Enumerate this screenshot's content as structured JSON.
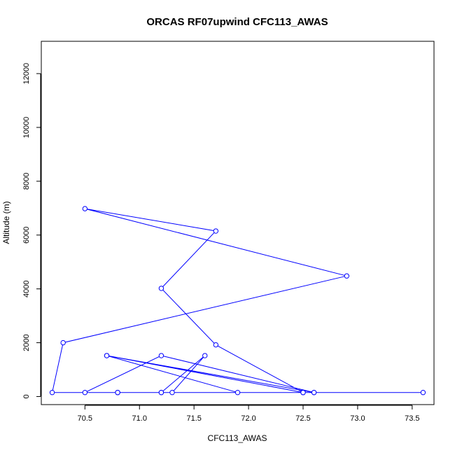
{
  "chart_data": {
    "type": "line",
    "title": "ORCAS RF07upwind CFC113_AWAS",
    "xlabel": "CFC113_AWAS",
    "ylabel": "Altitude (m)",
    "xlim": [
      70.1,
      73.7
    ],
    "ylim": [
      -300,
      13200
    ],
    "x_ticks": [
      70.5,
      71.0,
      71.5,
      72.0,
      72.5,
      73.0,
      73.5
    ],
    "x_tick_labels": [
      "70.5",
      "71.0",
      "71.5",
      "72.0",
      "72.5",
      "73.0",
      "73.5"
    ],
    "y_ticks": [
      0,
      2000,
      4000,
      6000,
      8000,
      10000,
      12000
    ],
    "y_tick_labels": [
      "0",
      "2000",
      "4000",
      "6000",
      "8000",
      "10000",
      "12000"
    ],
    "grid": false,
    "legend": "none",
    "series": [
      {
        "color": "#0000ff",
        "marker": "open-circle",
        "x": [
          72.5,
          72.6,
          70.2,
          70.3,
          72.9,
          70.5,
          71.7,
          71.2,
          71.7,
          72.5,
          70.7,
          72.6,
          71.2,
          70.5,
          71.2,
          71.6,
          71.3,
          70.8,
          71.9,
          70.7,
          72.5,
          70.8,
          71.2,
          70.8,
          73.6
        ],
        "y": [
          150,
          150,
          150,
          2000,
          4480,
          6980,
          6150,
          4020,
          1920,
          150,
          1520,
          150,
          1520,
          150,
          150,
          1520,
          150,
          150,
          150,
          1520,
          150,
          150,
          150,
          150,
          150
        ]
      }
    ]
  }
}
